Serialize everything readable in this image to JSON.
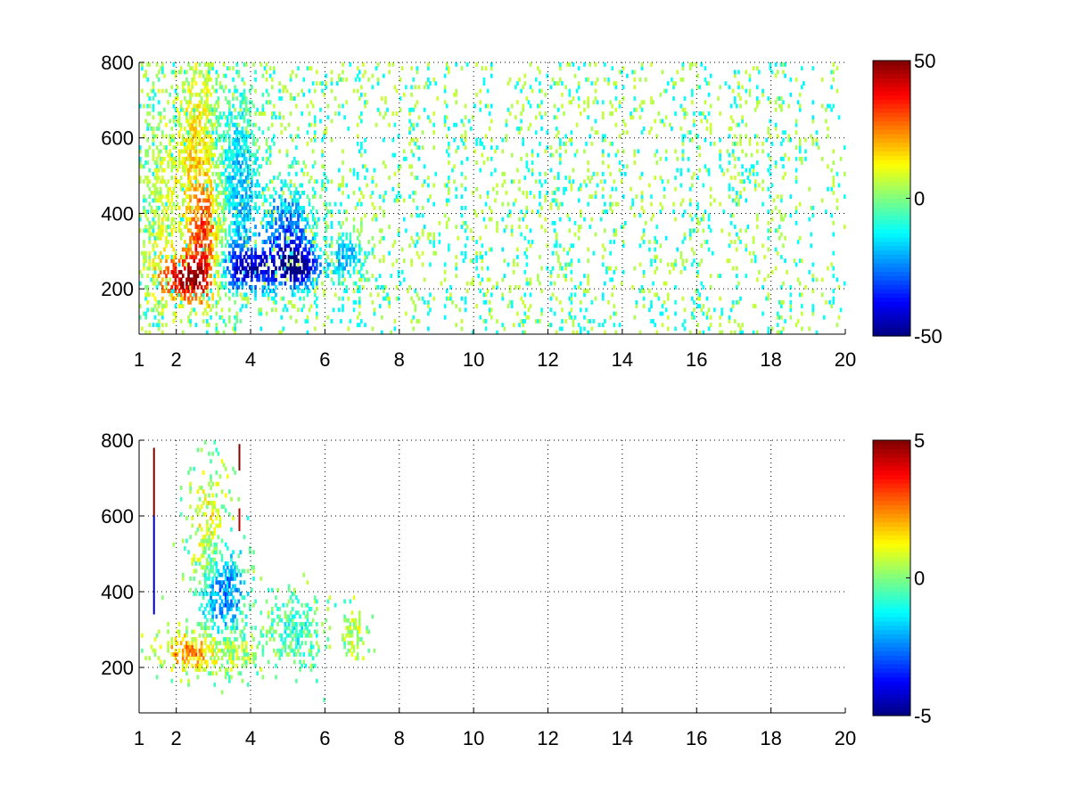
{
  "figure": {
    "background": "#ffffff"
  },
  "chart_data": [
    {
      "type": "heatmap",
      "title": "",
      "xlabel": "",
      "ylabel": "",
      "xlim": [
        1,
        20
      ],
      "ylim": [
        80,
        800
      ],
      "x_ticks": [
        1,
        2,
        4,
        6,
        8,
        10,
        12,
        14,
        16,
        18,
        20
      ],
      "y_ticks": [
        200,
        400,
        600,
        800
      ],
      "grid": "dotted",
      "colormap": "jet",
      "colorbar": {
        "range": [
          -50,
          50
        ],
        "ticks": [
          50,
          0,
          -50
        ]
      },
      "blobs": [
        {
          "x": 2.3,
          "y": 230,
          "sx": 0.55,
          "sy": 45,
          "v": 42,
          "cover": 0.97
        },
        {
          "x": 2.8,
          "y": 330,
          "sx": 0.35,
          "sy": 110,
          "v": 28,
          "cover": 0.9
        },
        {
          "x": 2.6,
          "y": 560,
          "sx": 0.45,
          "sy": 190,
          "v": 14,
          "cover": 0.85
        },
        {
          "x": 3.9,
          "y": 255,
          "sx": 0.7,
          "sy": 45,
          "v": -38,
          "cover": 0.97
        },
        {
          "x": 5.3,
          "y": 260,
          "sx": 0.45,
          "sy": 40,
          "v": -42,
          "cover": 0.95
        },
        {
          "x": 3.6,
          "y": 470,
          "sx": 0.45,
          "sy": 170,
          "v": -20,
          "cover": 0.9
        },
        {
          "x": 5.0,
          "y": 360,
          "sx": 0.5,
          "sy": 80,
          "v": -28,
          "cover": 0.85
        },
        {
          "x": 6.6,
          "y": 285,
          "sx": 0.3,
          "sy": 40,
          "v": -20,
          "cover": 0.9
        },
        {
          "x": 1.6,
          "y": 400,
          "sx": 0.3,
          "sy": 220,
          "v": 6,
          "cover": 0.5
        }
      ],
      "noise": {
        "amplitude": 8,
        "sparse_fraction": 0.16,
        "sparse_values": [
          -12,
          6
        ]
      }
    },
    {
      "type": "heatmap",
      "title": "",
      "xlabel": "",
      "ylabel": "",
      "xlim": [
        1,
        20
      ],
      "ylim": [
        80,
        800
      ],
      "x_ticks": [
        1,
        2,
        4,
        6,
        8,
        10,
        12,
        14,
        16,
        18,
        20
      ],
      "y_ticks": [
        200,
        400,
        600,
        800
      ],
      "grid": "dotted",
      "colormap": "jet",
      "colorbar": {
        "range": [
          -5,
          5
        ],
        "ticks": [
          5,
          0,
          -5
        ]
      },
      "blobs": [
        {
          "x": 2.3,
          "y": 240,
          "sx": 0.5,
          "sy": 35,
          "v": 2.4,
          "cover": 0.95
        },
        {
          "x": 3.2,
          "y": 400,
          "sx": 0.45,
          "sy": 90,
          "v": -3.0,
          "cover": 0.85
        },
        {
          "x": 3.4,
          "y": 250,
          "sx": 0.6,
          "sy": 40,
          "v": 0.8,
          "cover": 0.9
        },
        {
          "x": 2.9,
          "y": 520,
          "sx": 0.35,
          "sy": 120,
          "v": 1.5,
          "cover": 0.7
        },
        {
          "x": 5.2,
          "y": 300,
          "sx": 0.45,
          "sy": 60,
          "v": -0.8,
          "cover": 0.75
        },
        {
          "x": 6.8,
          "y": 290,
          "sx": 0.2,
          "sy": 40,
          "v": 0.8,
          "cover": 0.85
        }
      ],
      "noise": {
        "amplitude": 1.0,
        "sparse_fraction": 0.0,
        "sparse_values": [
          0,
          0
        ]
      },
      "streaks": [
        {
          "x": 1.4,
          "y0": 600,
          "y1": 780,
          "v": 5
        },
        {
          "x": 1.4,
          "y0": 340,
          "y1": 600,
          "v": -4.5
        },
        {
          "x": 3.7,
          "y0": 720,
          "y1": 790,
          "v": 5
        },
        {
          "x": 3.7,
          "y0": 560,
          "y1": 620,
          "v": 4.5
        }
      ]
    }
  ]
}
